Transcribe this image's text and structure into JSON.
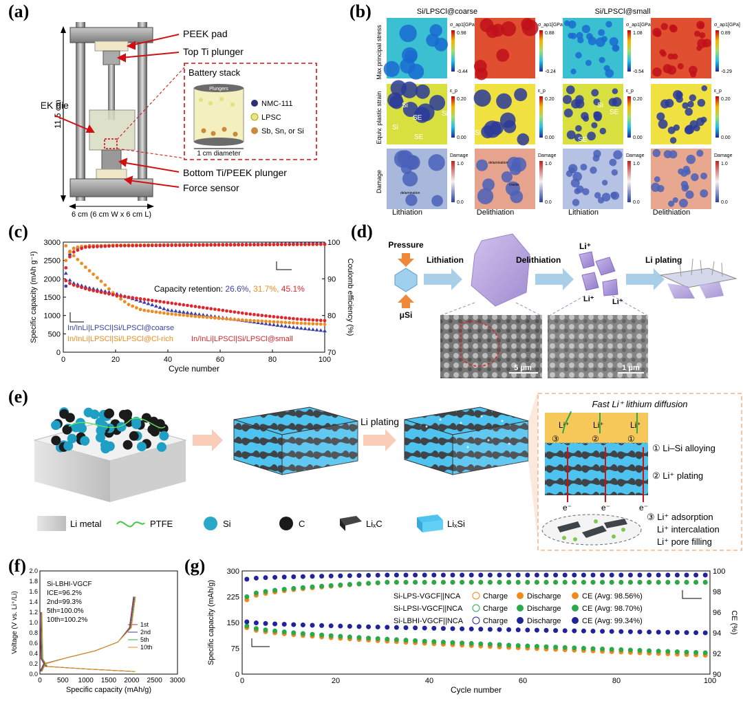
{
  "labels": {
    "a": "(a)",
    "b": "(b)",
    "c": "(c)",
    "d": "(d)",
    "e": "(e)",
    "f": "(f)",
    "g": "(g)"
  },
  "panel_a": {
    "callouts": [
      "PEEK pad",
      "Top Ti plunger",
      "Battery stack",
      "PEEK die",
      "Bottom Ti/PEEK plunger",
      "Force sensor"
    ],
    "height_dim": "11.5 cm",
    "width_dim": "6 cm (6 cm W x 6 cm L)",
    "inset_plungers": "Plungers",
    "inset_diameter": "1 cm diameter",
    "legend": [
      "NMC-111",
      "LPSC",
      "Sb, Sn, or Si"
    ],
    "legend_colors": [
      "#2b2f7a",
      "#e8e48a",
      "#c98a3a"
    ]
  },
  "panel_b": {
    "col_groups": [
      "Si/LPSCl@coarse",
      "Si/LPSCl@small"
    ],
    "row_labels": [
      "Max principal stress",
      "Equiv. plastic strain",
      "Damage"
    ],
    "col_bottom": [
      "Lithiation",
      "Delithiation",
      "Lithiation",
      "Delithiation"
    ],
    "stress_unit": "σ_ap1[GPa]",
    "strain_unit": "ε_p",
    "damage_unit": "Damage",
    "stress_ranges": [
      [
        "0.98",
        "-0.44"
      ],
      [
        "0.88",
        "-0.24"
      ],
      [
        "1.08",
        "-0.54"
      ],
      [
        "0.89",
        "-0.29"
      ]
    ],
    "strain_range": [
      "0.20",
      "0.00"
    ],
    "damage_range": [
      "1.0",
      "0.0"
    ],
    "region_labels": [
      "Si",
      "SE"
    ],
    "annotations": [
      "delamination",
      "cracks"
    ]
  },
  "panel_c": {
    "xlabel": "Cycle number",
    "ylabel_left": "Specific capacity (mAh g⁻¹)",
    "ylabel_right": "Coulomb efficiency (%)",
    "retention_label": "Capacity retention:",
    "retention_values": [
      "26.6%,",
      "31.7%,",
      "45.1%"
    ],
    "series_labels": [
      "In/InLi|LPSCl|Si/LPSCl@coarse",
      "In/InLi|LPSCl|Si/LPSCl@Cl-rich",
      "In/InLi|LPSCl|Si/LPSCl@small"
    ],
    "colors": [
      "#3b3fa8",
      "#f08a1e",
      "#e0262a"
    ]
  },
  "panel_d": {
    "steps": [
      "Pressure",
      "Lithiation",
      "Delithiation",
      "Li plating"
    ],
    "particle": "μSi",
    "ions": [
      "Li⁺",
      "Li⁺",
      "Li⁺"
    ],
    "scale_bars": [
      "5 μm",
      "1 μm"
    ]
  },
  "panel_e": {
    "arrow_label": "Li plating",
    "box_title": "Fast Li⁺ lithium diffusion",
    "steps": [
      "① Li–Si alloying",
      "② Li⁺ plating",
      "③ Li⁺ adsorption",
      "Li⁺ intercalation",
      "Li⁺ pore filling"
    ],
    "circled": [
      "③",
      "②",
      "①"
    ],
    "ion": "Li⁺",
    "electron": "e⁻",
    "legend": [
      "Li metal",
      "PTFE",
      "Si",
      "C",
      "LiₓC",
      "LiₓSi"
    ]
  },
  "chart_data": [
    {
      "id": "c",
      "type": "line",
      "xlabel": "Cycle number",
      "ylabel": "Specific capacity (mAh g⁻¹)",
      "y2label": "Coulomb efficiency (%)",
      "xlim": [
        0,
        100
      ],
      "ylim": [
        0,
        3000
      ],
      "y2lim": [
        70,
        100
      ],
      "xticks": [
        0,
        20,
        40,
        60,
        80,
        100
      ],
      "yticks": [
        0,
        500,
        1000,
        1500,
        2000,
        2500,
        3000
      ],
      "y2ticks": [
        70,
        80,
        90,
        100
      ],
      "series": [
        {
          "name": "In/InLi|LPSCl|Si/LPSCl@coarse",
          "color": "#3b3fa8",
          "capacity": [
            [
              1,
              2150
            ],
            [
              3,
              1900
            ],
            [
              10,
              1750
            ],
            [
              20,
              1600
            ],
            [
              30,
              1380
            ],
            [
              40,
              1150
            ],
            [
              50,
              1050
            ],
            [
              60,
              950
            ],
            [
              70,
              850
            ],
            [
              80,
              750
            ],
            [
              90,
              660
            ],
            [
              100,
              580
            ]
          ],
          "ce": [
            [
              1,
              88
            ],
            [
              2,
              96
            ],
            [
              4,
              98.3
            ],
            [
              10,
              99
            ],
            [
              40,
              99.3
            ],
            [
              100,
              99.5
            ]
          ]
        },
        {
          "name": "In/InLi|LPSCl|Si/LPSCl@Cl-rich",
          "color": "#f08a1e",
          "capacity": [
            [
              1,
              2900
            ],
            [
              3,
              2700
            ],
            [
              8,
              2350
            ],
            [
              15,
              1900
            ],
            [
              20,
              1550
            ],
            [
              25,
              1300
            ],
            [
              30,
              1150
            ],
            [
              40,
              1050
            ],
            [
              50,
              980
            ],
            [
              60,
              920
            ],
            [
              70,
              870
            ],
            [
              80,
              830
            ],
            [
              90,
              790
            ],
            [
              100,
              760
            ]
          ],
          "ce": [
            [
              1,
              95
            ],
            [
              3,
              98
            ],
            [
              6,
              98.8
            ],
            [
              20,
              99.2
            ],
            [
              100,
              99.4
            ]
          ]
        },
        {
          "name": "In/InLi|LPSCl|Si/LPSCl@small",
          "color": "#e0262a",
          "capacity": [
            [
              1,
              1950
            ],
            [
              3,
              1850
            ],
            [
              10,
              1700
            ],
            [
              20,
              1550
            ],
            [
              30,
              1450
            ],
            [
              40,
              1350
            ],
            [
              50,
              1250
            ],
            [
              60,
              1150
            ],
            [
              70,
              1050
            ],
            [
              80,
              970
            ],
            [
              90,
              900
            ],
            [
              100,
              860
            ]
          ],
          "ce": [
            [
              1,
              93
            ],
            [
              3,
              97
            ],
            [
              8,
              98.6
            ],
            [
              20,
              99
            ],
            [
              100,
              99.4
            ]
          ]
        }
      ]
    },
    {
      "id": "f",
      "type": "line",
      "xlabel": "Specific capacity (mAh/g)",
      "ylabel": "Voltage (V vs. Li⁺/Li)",
      "xlim": [
        0,
        3000
      ],
      "ylim": [
        0,
        2.0
      ],
      "xticks": [
        0,
        500,
        1000,
        1500,
        2000,
        2500,
        3000
      ],
      "yticks": [
        0,
        0.2,
        0.4,
        0.6,
        0.8,
        1.0,
        1.2,
        1.4,
        1.6,
        1.8,
        2.0
      ],
      "title_lines": [
        "Si-LBHI-VGCF",
        "ICE=96.2%",
        "2nd=99.3%",
        "5th=100.0%",
        "10th=100.2%"
      ],
      "series": [
        {
          "name": "1st",
          "color": "#e0262a",
          "offset": 0
        },
        {
          "name": "2nd",
          "color": "#3b3fa8",
          "offset": 15
        },
        {
          "name": "5th",
          "color": "#2aa84a",
          "offset": 30
        },
        {
          "name": "10th",
          "color": "#f08a1e",
          "offset": 45
        }
      ]
    },
    {
      "id": "g",
      "type": "scatter",
      "xlabel": "Cycle number",
      "ylabel": "Specific capacity (mAh/g)",
      "y2label": "CE (%)",
      "xlim": [
        0,
        100
      ],
      "ylim": [
        0,
        300
      ],
      "y2lim": [
        90,
        100
      ],
      "xticks": [
        0,
        20,
        40,
        60,
        80,
        100
      ],
      "yticks": [
        0,
        75,
        150,
        225,
        300
      ],
      "y2ticks": [
        90,
        92,
        94,
        96,
        98,
        100
      ],
      "legend_rows": [
        {
          "name": "Si-LPS-VGCF||NCA",
          "charge": "Charge",
          "discharge": "Discharge",
          "ce": "CE (Avg: 98.56%)",
          "color": "#f08a1e"
        },
        {
          "name": "Si-LPSI-VGCF||NCA",
          "charge": "Charge",
          "discharge": "Discharge",
          "ce": "CE (Avg: 98.70%)",
          "color": "#2aa84a"
        },
        {
          "name": "Si-LBHI-VGCF||NCA",
          "charge": "Charge",
          "discharge": "Discharge",
          "ce": "CE (Avg: 99.34%)",
          "color": "#22229a"
        }
      ],
      "series": [
        {
          "name": "Si-LPS-VGCF||NCA",
          "color": "#f08a1e",
          "capacity_start": 135,
          "capacity_end": 55,
          "ce_start": 97.2,
          "ce_end": 98.9
        },
        {
          "name": "Si-LPSI-VGCF||NCA",
          "color": "#2aa84a",
          "capacity_start": 140,
          "capacity_end": 62,
          "ce_start": 97.5,
          "ce_end": 98.9
        },
        {
          "name": "Si-LBHI-VGCF||NCA",
          "color": "#22229a",
          "capacity_start": 152,
          "capacity_end": 120,
          "ce_start": 99.2,
          "ce_end": 99.6
        }
      ]
    }
  ]
}
